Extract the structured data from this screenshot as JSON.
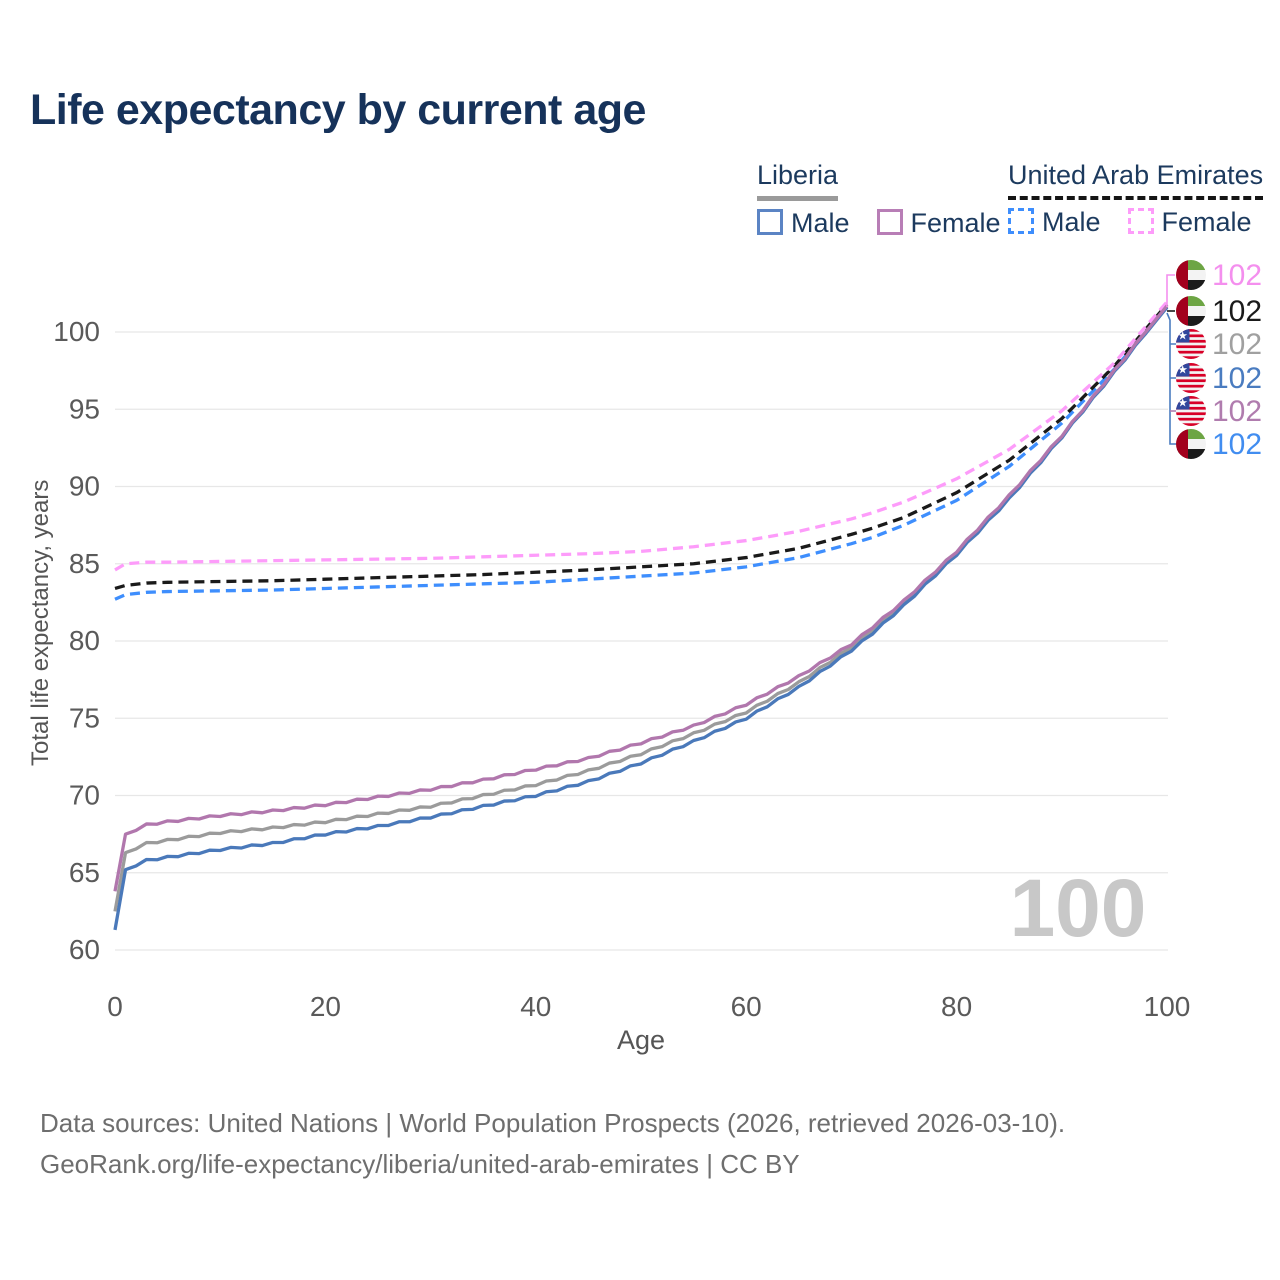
{
  "title": "Life expectancy by current age",
  "legend": {
    "groups": [
      {
        "name": "Liberia",
        "line_style": "solid",
        "underline_color": "#9a9a9a",
        "items": [
          {
            "label": "Male",
            "color": "#4a79ba"
          },
          {
            "label": "Female",
            "color": "#b177ad"
          }
        ]
      },
      {
        "name": "United Arab Emirates",
        "line_style": "dashed",
        "underline_color": "#151515",
        "items": [
          {
            "label": "Male",
            "color": "#3e8efd"
          },
          {
            "label": "Female",
            "color": "#fd9cfa"
          }
        ]
      }
    ]
  },
  "watermark": "100",
  "footer": {
    "line1": "Data sources: United Nations | World Population Prospects (2026, retrieved 2026-03-10).",
    "line2": "GeoRank.org/life-expectancy/liberia/united-arab-emirates | CC BY"
  },
  "end_labels": [
    {
      "flag": "uae",
      "value": "102",
      "color": "#f48fee",
      "series": "uae-female"
    },
    {
      "flag": "uae",
      "value": "102",
      "color": "#1a1a1a",
      "series": "uae-total"
    },
    {
      "flag": "liberia",
      "value": "102",
      "color": "#a0a0a0",
      "series": "liberia-total"
    },
    {
      "flag": "liberia",
      "value": "102",
      "color": "#4a7cc0",
      "series": "liberia-male"
    },
    {
      "flag": "liberia",
      "value": "102",
      "color": "#b07cae",
      "series": "liberia-female"
    },
    {
      "flag": "uae",
      "value": "102",
      "color": "#418df0",
      "series": "uae-male"
    }
  ],
  "chart_data": {
    "type": "line",
    "title": "Life expectancy by current age",
    "xlabel": "Age",
    "ylabel": "Total life expectancy, years",
    "xlim": [
      0,
      100
    ],
    "ylim": [
      59,
      103
    ],
    "x_ticks": [
      0,
      20,
      40,
      60,
      80,
      100
    ],
    "y_ticks": [
      60,
      65,
      70,
      75,
      80,
      85,
      90,
      95,
      100
    ],
    "grid": "horizontal",
    "legend_position": "top-right",
    "x": [
      0,
      1,
      3,
      5,
      10,
      15,
      20,
      25,
      30,
      35,
      40,
      45,
      50,
      55,
      60,
      65,
      70,
      72,
      75,
      80,
      85,
      90,
      95,
      100
    ],
    "series": [
      {
        "id": "uae-male",
        "name": "United Arab Emirates Male",
        "country": "United Arab Emirates",
        "sex": "male",
        "color": "#3e8efd",
        "dash": true,
        "values": [
          82.7,
          83.0,
          83.15,
          83.2,
          83.25,
          83.3,
          83.4,
          83.5,
          83.6,
          83.7,
          83.8,
          84.0,
          84.2,
          84.4,
          84.8,
          85.4,
          86.3,
          86.7,
          87.5,
          89.1,
          91.3,
          94.1,
          97.6,
          101.6
        ]
      },
      {
        "id": "uae-total",
        "name": "United Arab Emirates",
        "country": "United Arab Emirates",
        "sex": "both",
        "color": "#1a1a1a",
        "dash": true,
        "values": [
          83.4,
          83.6,
          83.75,
          83.8,
          83.85,
          83.9,
          84.0,
          84.1,
          84.2,
          84.3,
          84.45,
          84.6,
          84.8,
          85.0,
          85.4,
          86.0,
          86.9,
          87.3,
          88.0,
          89.6,
          91.7,
          94.4,
          97.8,
          101.8
        ]
      },
      {
        "id": "uae-female",
        "name": "United Arab Emirates Female",
        "country": "United Arab Emirates",
        "sex": "female",
        "color": "#fd9cfa",
        "dash": true,
        "values": [
          84.6,
          85.0,
          85.1,
          85.1,
          85.15,
          85.2,
          85.25,
          85.3,
          85.35,
          85.45,
          85.55,
          85.65,
          85.8,
          86.1,
          86.5,
          87.1,
          87.9,
          88.3,
          89.0,
          90.5,
          92.4,
          94.9,
          98.0,
          101.95
        ]
      },
      {
        "id": "liberia-total",
        "name": "Liberia",
        "country": "Liberia",
        "sex": "both",
        "color": "#9b9b9b",
        "dash": false,
        "values": [
          62.5,
          66.3,
          66.9,
          67.1,
          67.6,
          67.9,
          68.3,
          68.8,
          69.3,
          70.0,
          70.7,
          71.6,
          72.7,
          74.0,
          75.4,
          77.3,
          79.6,
          80.7,
          82.4,
          85.7,
          89.3,
          93.25,
          97.45,
          101.65
        ]
      },
      {
        "id": "liberia-male",
        "name": "Liberia Male",
        "country": "Liberia",
        "sex": "male",
        "color": "#4a79ba",
        "dash": false,
        "values": [
          61.3,
          65.2,
          65.8,
          66.0,
          66.5,
          66.9,
          67.5,
          68.0,
          68.6,
          69.3,
          70.0,
          70.9,
          72.1,
          73.5,
          75.0,
          77.0,
          79.4,
          80.5,
          82.3,
          85.6,
          89.2,
          93.2,
          97.4,
          101.6
        ]
      },
      {
        "id": "liberia-female",
        "name": "Liberia Female",
        "country": "Liberia",
        "sex": "female",
        "color": "#b177ad",
        "dash": false,
        "values": [
          63.8,
          67.5,
          68.1,
          68.3,
          68.7,
          69.0,
          69.4,
          69.9,
          70.4,
          71.0,
          71.7,
          72.4,
          73.4,
          74.5,
          75.9,
          77.7,
          79.8,
          80.9,
          82.6,
          85.8,
          89.4,
          93.3,
          97.5,
          101.7
        ]
      }
    ]
  }
}
